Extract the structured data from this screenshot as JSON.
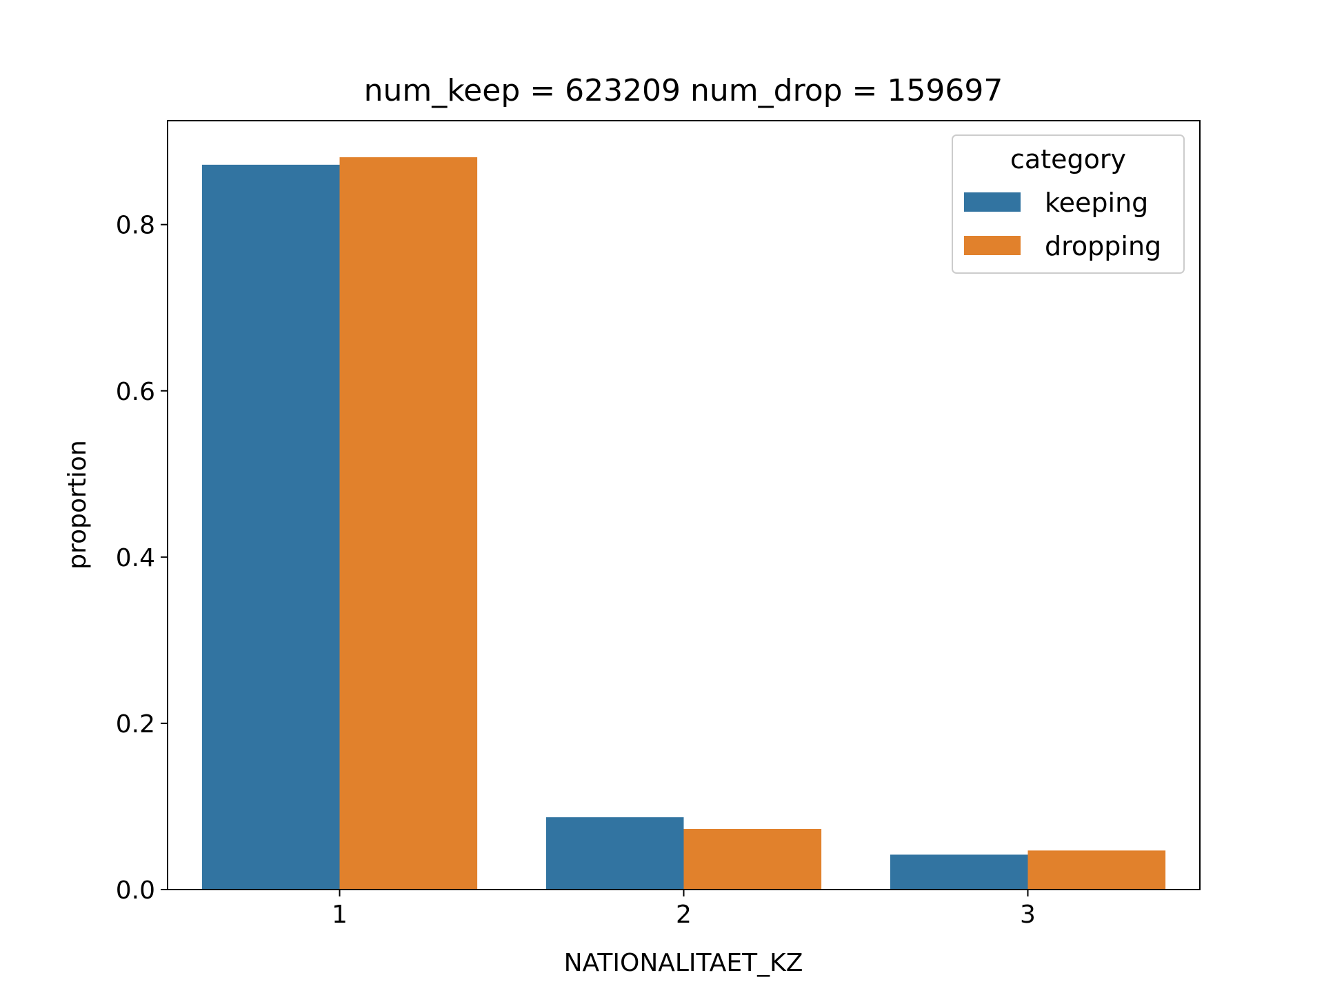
{
  "chart_data": {
    "type": "bar",
    "title": "num_keep = 623209  num_drop = 159697",
    "xlabel": "NATIONALITAET_KZ",
    "ylabel": "proportion",
    "categories": [
      "1",
      "2",
      "3"
    ],
    "series": [
      {
        "name": "keeping",
        "values": [
          0.872,
          0.087,
          0.042
        ],
        "color": "#3274a1"
      },
      {
        "name": "dropping",
        "values": [
          0.881,
          0.073,
          0.047
        ],
        "color": "#e1812c"
      }
    ],
    "ylim": [
      0,
      0.925
    ],
    "yticks": [
      0.0,
      0.2,
      0.4,
      0.6,
      0.8
    ],
    "ytick_labels": [
      "0.0",
      "0.2",
      "0.4",
      "0.6",
      "0.8"
    ],
    "grid": false,
    "legend": {
      "title": "category",
      "position": "top-right"
    }
  }
}
